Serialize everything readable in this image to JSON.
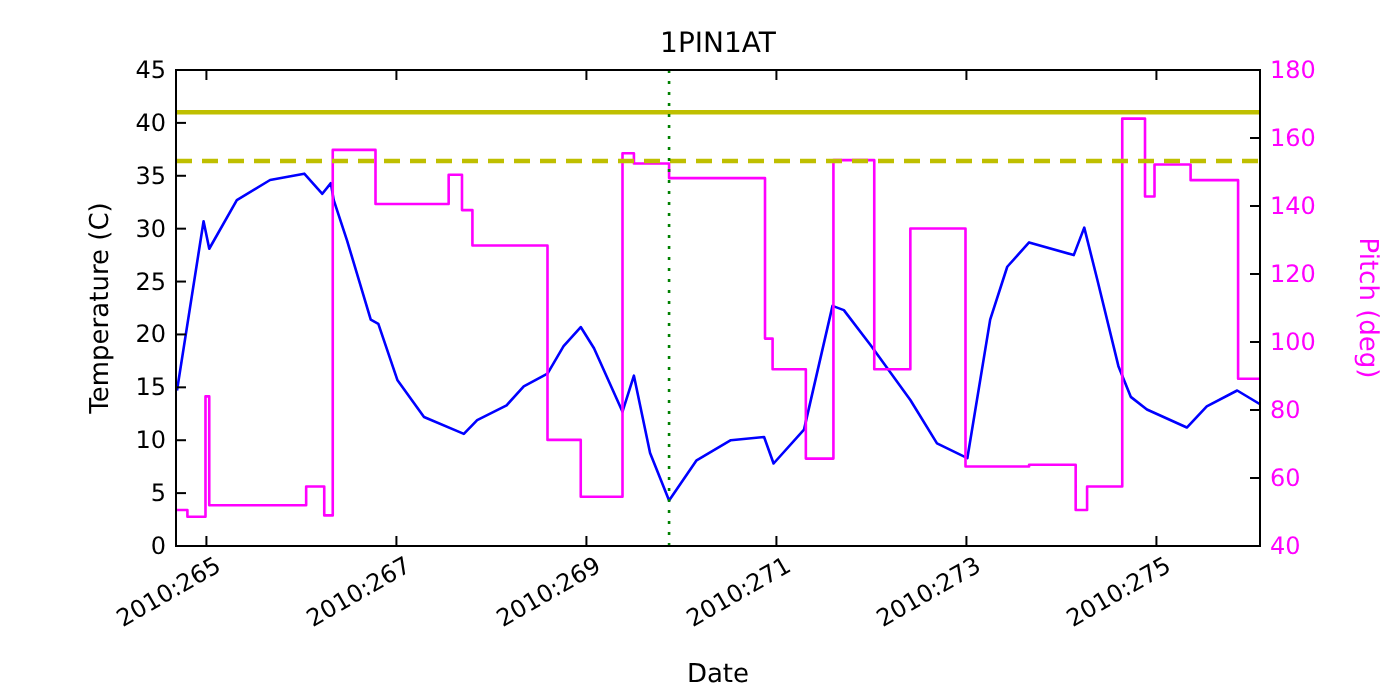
{
  "chart_data": {
    "type": "line",
    "title": "1PIN1AT",
    "xlabel": "Date",
    "ylabel": "Temperature (C)",
    "y2label": "Pitch (deg)",
    "xlim": [
      "2010-09-21T16:19",
      "2010-10-03T02:10"
    ],
    "xticks": [
      {
        "value": "2010-09-22",
        "label": "2010:265"
      },
      {
        "value": "2010-09-24",
        "label": "2010:267"
      },
      {
        "value": "2010-09-26",
        "label": "2010:269"
      },
      {
        "value": "2010-09-28",
        "label": "2010:271"
      },
      {
        "value": "2010-09-30",
        "label": "2010:273"
      },
      {
        "value": "2010-10-02",
        "label": "2010:275"
      }
    ],
    "ylim": [
      0,
      45
    ],
    "yticks": [
      0,
      5,
      10,
      15,
      20,
      25,
      30,
      35,
      40,
      45
    ],
    "y2lim": [
      40,
      180
    ],
    "y2ticks": [
      40,
      60,
      80,
      100,
      120,
      140,
      160,
      180
    ],
    "series": [
      {
        "type": "line",
        "color": "#0000ff",
        "x": [
          "2010-09-21T16:34",
          "2010-09-21T23:17",
          "2010-09-22T00:43",
          "2010-09-22T07:41",
          "2010-09-22T16:05",
          "2010-09-23T00:43",
          "2010-09-23T05:17",
          "2010-09-23T07:26",
          "2010-09-23T08:10",
          "2010-09-23T11:31",
          "2010-09-23T17:31",
          "2010-09-23T19:26",
          "2010-09-24T00:14",
          "2010-09-24T06:58",
          "2010-09-24T17:02",
          "2010-09-24T20:24",
          "2010-09-25T03:50",
          "2010-09-25T08:10",
          "2010-09-25T14:10",
          "2010-09-25T18:14",
          "2010-09-25T22:34",
          "2010-09-26T01:55",
          "2010-09-26T09:07",
          "2010-09-26T12:00",
          "2010-09-26T16:05",
          "2010-09-26T20:53",
          "2010-09-27T03:50",
          "2010-09-27T12:29",
          "2010-09-27T20:53",
          "2010-09-27T23:17",
          "2010-09-28T06:58",
          "2010-09-28T14:10",
          "2010-09-28T17:02",
          "2010-09-28T23:46",
          "2010-09-29T09:50",
          "2010-09-29T16:34",
          "2010-09-30T00:14",
          "2010-09-30T06:00",
          "2010-09-30T10:19",
          "2010-09-30T15:50",
          "2010-10-01T03:07",
          "2010-10-01T05:46",
          "2010-10-01T09:07",
          "2010-10-01T14:24",
          "2010-10-01T17:31",
          "2010-10-01T21:36",
          "2010-10-02T07:41",
          "2010-10-02T12:43",
          "2010-10-02T20:24",
          "2010-10-03T02:10"
        ],
        "values": [
          14.7,
          30.7,
          28.1,
          32.7,
          34.6,
          35.2,
          33.3,
          34.3,
          32.7,
          28.9,
          21.4,
          21,
          15.7,
          12.2,
          10.6,
          11.9,
          13.3,
          15.1,
          16.3,
          18.9,
          20.7,
          18.7,
          12.7,
          16.1,
          8.8,
          4.3,
          8.1,
          10,
          10.3,
          7.8,
          11,
          22.7,
          22.3,
          19,
          13.8,
          9.7,
          8.3,
          21.4,
          26.4,
          28.7,
          27.5,
          30.1,
          25.1,
          17,
          14.1,
          12.9,
          11.2,
          13.2,
          14.7,
          13.4
        ]
      },
      {
        "type": "step",
        "axis": "y2",
        "color": "#ff00ff",
        "x": [
          "2010-09-21T16:19",
          "2010-09-21T19:12",
          "2010-09-21T23:46",
          "2010-09-22T00:43",
          "2010-09-23T01:12",
          "2010-09-23T05:46",
          "2010-09-23T07:55",
          "2010-09-23T18:43",
          "2010-09-24T13:12",
          "2010-09-24T16:34",
          "2010-09-24T19:12",
          "2010-09-25T14:10",
          "2010-09-25T22:34",
          "2010-09-26T09:07",
          "2010-09-26T12:00",
          "2010-09-26T20:53",
          "2010-09-27T21:07",
          "2010-09-27T23:02",
          "2010-09-28T07:26",
          "2010-09-28T14:24",
          "2010-09-29T00:43",
          "2010-09-29T09:50",
          "2010-09-29T23:46",
          "2010-09-30T15:50",
          "2010-10-01T03:36",
          "2010-10-01T06:29",
          "2010-10-01T15:22",
          "2010-10-01T21:07",
          "2010-10-01T23:31",
          "2010-10-02T08:38",
          "2010-10-02T20:38",
          "2010-10-03T02:10"
        ],
        "values": [
          50.6,
          48.6,
          84,
          52,
          57.5,
          49,
          156.5,
          140.6,
          149.2,
          138.8,
          128.4,
          71.2,
          54.5,
          155.5,
          152.5,
          148.2,
          101,
          92,
          65.7,
          153.5,
          92,
          133.4,
          63.4,
          63.9,
          50.6,
          57.5,
          165.7,
          142.8,
          152.2,
          147.6,
          89.2,
          89.2
        ]
      }
    ],
    "ref_lines": [
      {
        "axis": "y",
        "value": 41,
        "color": "#bfbf00",
        "line_style": "solid"
      },
      {
        "axis": "y",
        "value": 36.4,
        "color": "#bfbf00",
        "line_style": "dashed"
      },
      {
        "axis": "x",
        "value": "2010-09-26T20:53",
        "color": "#008000",
        "line_style": "dotted"
      }
    ]
  }
}
